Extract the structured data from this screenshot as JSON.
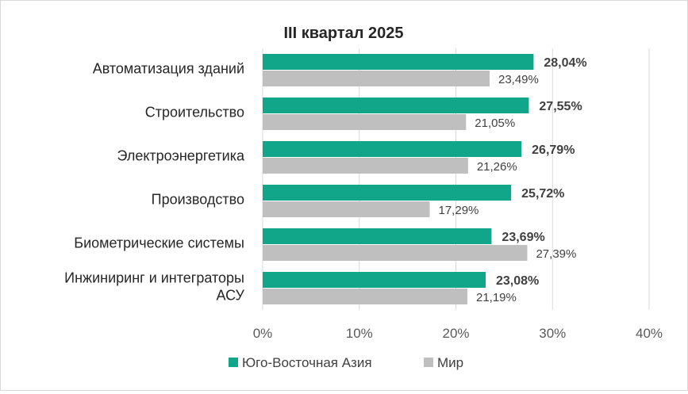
{
  "chart_data": {
    "type": "bar",
    "orientation": "horizontal",
    "title": "III квартал 2025",
    "categories": [
      "Автоматизация зданий",
      "Строительство",
      "Электроэнергетика",
      "Производство",
      "Биометрические системы",
      "Инжиниринг и интеграторы АСУ"
    ],
    "category_lines": [
      [
        "Автоматизация зданий"
      ],
      [
        "Строительство"
      ],
      [
        "Электроэнергетика"
      ],
      [
        "Производство"
      ],
      [
        "Биометрические системы"
      ],
      [
        "Инжиниринг и интеграторы",
        "АСУ"
      ]
    ],
    "series": [
      {
        "name": "Юго-Восточная Азия",
        "color": "#11a58a",
        "values": [
          28.04,
          27.55,
          26.79,
          25.72,
          23.69,
          23.08
        ],
        "labels": [
          "28,04%",
          "27,55%",
          "26,79%",
          "25,72%",
          "23,69%",
          "23,08%"
        ]
      },
      {
        "name": "Мир",
        "color": "#bfbfbf",
        "values": [
          23.49,
          21.05,
          21.26,
          17.29,
          27.39,
          21.19
        ],
        "labels": [
          "23,49%",
          "21,05%",
          "21,26%",
          "17,29%",
          "27,39%",
          "21,19%"
        ]
      }
    ],
    "xlim": [
      0,
      40
    ],
    "xticks": [
      0,
      10,
      20,
      30,
      40
    ],
    "xtick_labels": [
      "0%",
      "10%",
      "20%",
      "30%",
      "40%"
    ],
    "grid": true,
    "legend_position": "bottom"
  }
}
